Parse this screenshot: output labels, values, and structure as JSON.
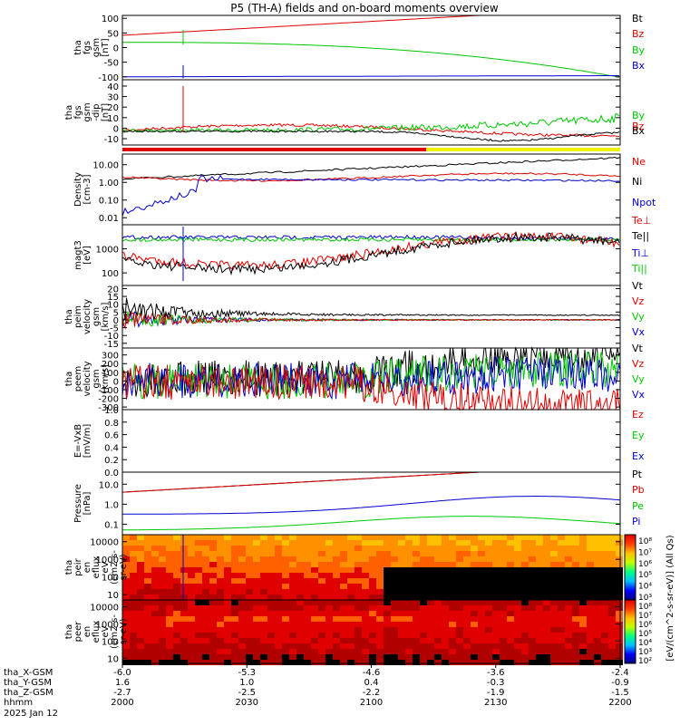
{
  "chart_data": {
    "type": "line",
    "title": "P5 (TH-A) fields and on-board moments overview",
    "panels": [
      {
        "ylabel": [
          "tha",
          "fgs",
          "gsm",
          "[nT]"
        ],
        "ticks": [
          "100",
          "50",
          "0",
          "-50",
          "-100"
        ],
        "tick_vals": [
          100,
          50,
          0,
          -50,
          -100
        ],
        "ylim": [
          -110,
          110
        ],
        "legend": [
          {
            "name": "Bt",
            "color": "#000000"
          },
          {
            "name": "Bz",
            "color": "#e00000"
          },
          {
            "name": "By",
            "color": "#00c800"
          },
          {
            "name": "Bx",
            "color": "#0000d0"
          }
        ]
      },
      {
        "ylabel": [
          "tha",
          "fgs",
          "gsm",
          "-dip",
          "[nT]"
        ],
        "ticks": [
          "40",
          "30",
          "20",
          "10",
          "0",
          "-10"
        ],
        "tick_vals": [
          40,
          30,
          20,
          10,
          0,
          -10
        ],
        "ylim": [
          -16,
          46
        ],
        "legend": [
          {
            "name": "By",
            "color": "#00c800"
          },
          {
            "name": "Bz",
            "color": "#e00000"
          },
          {
            "name": "Bx",
            "color": "#000000"
          }
        ]
      },
      {
        "ylabel": [
          "Density",
          "[cm-3]"
        ],
        "ticks": [
          "10.00",
          "1.00",
          "0.10",
          "0.01"
        ],
        "tick_vals": [
          10,
          1,
          0.1,
          0.01
        ],
        "ylim": [
          0.004,
          40
        ],
        "log": true,
        "legend": [
          {
            "name": "Ne",
            "color": "#e00000"
          },
          {
            "name": "Ni",
            "color": "#000000"
          },
          {
            "name": "Npot",
            "color": "#0000d0"
          }
        ]
      },
      {
        "ylabel": [
          "magt3",
          "[eV]"
        ],
        "ticks": [
          "1000",
          "100"
        ],
        "tick_vals": [
          1000,
          100
        ],
        "ylim": [
          30,
          10000
        ],
        "log": true,
        "legend": [
          {
            "name": "Te⊥",
            "color": "#e00000"
          },
          {
            "name": "Te||",
            "color": "#000000"
          },
          {
            "name": "Ti⊥",
            "color": "#0000d0"
          },
          {
            "name": "Ti||",
            "color": "#00c800"
          }
        ]
      },
      {
        "ylabel": [
          "tha",
          "peim",
          "velocity",
          "gsm",
          "[km/s]"
        ],
        "ticks": [
          "20",
          "15",
          "10",
          "5",
          "0",
          "-5",
          "-10",
          "-15"
        ],
        "tick_vals": [
          20,
          15,
          10,
          5,
          0,
          -5,
          -10,
          -15
        ],
        "ylim": [
          -18,
          22
        ],
        "legend": [
          {
            "name": "Vt",
            "color": "#000000"
          },
          {
            "name": "Vz",
            "color": "#e00000"
          },
          {
            "name": "Vy",
            "color": "#00c800"
          },
          {
            "name": "Vx",
            "color": "#0000d0"
          }
        ]
      },
      {
        "ylabel": [
          "tha",
          "peem",
          "velocity",
          "gsm",
          "[km/s]"
        ],
        "ticks": [
          "300",
          "200",
          "100",
          "0",
          "-100",
          "-200",
          "-300"
        ],
        "tick_vals": [
          300,
          200,
          100,
          0,
          -100,
          -200,
          -300
        ],
        "ylim": [
          -330,
          380
        ],
        "legend": [
          {
            "name": "Vt",
            "color": "#000000"
          },
          {
            "name": "Vz",
            "color": "#e00000"
          },
          {
            "name": "Vy",
            "color": "#00c800"
          },
          {
            "name": "Vx",
            "color": "#0000d0"
          }
        ]
      },
      {
        "ylabel": [
          "E=-VxB",
          "[mV/m]"
        ],
        "ticks": [
          "1.0",
          "0.8",
          "0.6",
          "0.4",
          "0.2",
          "0.0"
        ],
        "tick_vals": [
          1,
          0.8,
          0.6,
          0.4,
          0.2,
          0
        ],
        "ylim": [
          0,
          1
        ],
        "legend": [
          {
            "name": "Ez",
            "color": "#e00000"
          },
          {
            "name": "Ey",
            "color": "#00c800"
          },
          {
            "name": "Ex",
            "color": "#0000d0"
          }
        ]
      },
      {
        "ylabel": [
          "Pressure",
          "[nPa]"
        ],
        "ticks": [
          "10.0",
          "1.0",
          "0.1"
        ],
        "tick_vals": [
          10,
          1,
          0.1
        ],
        "ylim": [
          0.03,
          40
        ],
        "log": true,
        "legend": [
          {
            "name": "Pt",
            "color": "#000000"
          },
          {
            "name": "Pb",
            "color": "#e00000"
          },
          {
            "name": "Pe",
            "color": "#00c800"
          },
          {
            "name": "Pi",
            "color": "#0000d0"
          }
        ]
      },
      {
        "ylabel": [
          "tha",
          "peir",
          "en",
          "eflux",
          "eV",
          "(cm2-s-",
          "sr-eV)"
        ],
        "ticks": [
          "10000",
          "1000",
          "100",
          "10"
        ],
        "tick_vals": [
          10000,
          1000,
          100,
          10
        ],
        "ylim": [
          5,
          25000
        ],
        "log": true,
        "spectrogram": true
      },
      {
        "ylabel": [
          "tha",
          "peer",
          "en",
          "eflux",
          "eV",
          "(cm2-s-",
          "sr-eV)"
        ],
        "ticks": [
          "10000",
          "1000",
          "100",
          "10"
        ],
        "tick_vals": [
          10000,
          1000,
          100,
          10
        ],
        "ylim": [
          5,
          25000
        ],
        "log": true,
        "spectrogram": true
      }
    ],
    "colorbar": {
      "label": "[eV/(cm^2-s-sr-eV)] (All Qs)",
      "upper_ticks": [
        "10⁸",
        "10⁷",
        "10⁶",
        "10⁵",
        "10⁴",
        "10³"
      ],
      "lower_ticks": [
        "10⁸",
        "10⁷",
        "10⁶",
        "10⁵",
        "10⁴",
        "10³",
        "10²"
      ]
    },
    "x_axis": {
      "row_labels": [
        "tha_X-GSM",
        "tha_Y-GSM",
        "tha_Z-GSM",
        "hhmm",
        "2025 Jan 12"
      ],
      "columns": [
        {
          "x_gsm": "-6.0",
          "y_gsm": "1.6",
          "z_gsm": "-2.7",
          "hhmm": "2000"
        },
        {
          "x_gsm": "-5.3",
          "y_gsm": "1.0",
          "z_gsm": "-2.5",
          "hhmm": "2030"
        },
        {
          "x_gsm": "-4.6",
          "y_gsm": "0.4",
          "z_gsm": "-2.2",
          "hhmm": "2100"
        },
        {
          "x_gsm": "-3.6",
          "y_gsm": "-0.3",
          "z_gsm": "-1.9",
          "hhmm": "2130"
        },
        {
          "x_gsm": "-2.4",
          "y_gsm": "-0.9",
          "z_gsm": "-1.5",
          "hhmm": "2200"
        }
      ]
    },
    "colors": {
      "black": "#000000",
      "red": "#e00000",
      "green": "#00c800",
      "blue": "#0000d0",
      "yellow": "#f0f000"
    }
  }
}
